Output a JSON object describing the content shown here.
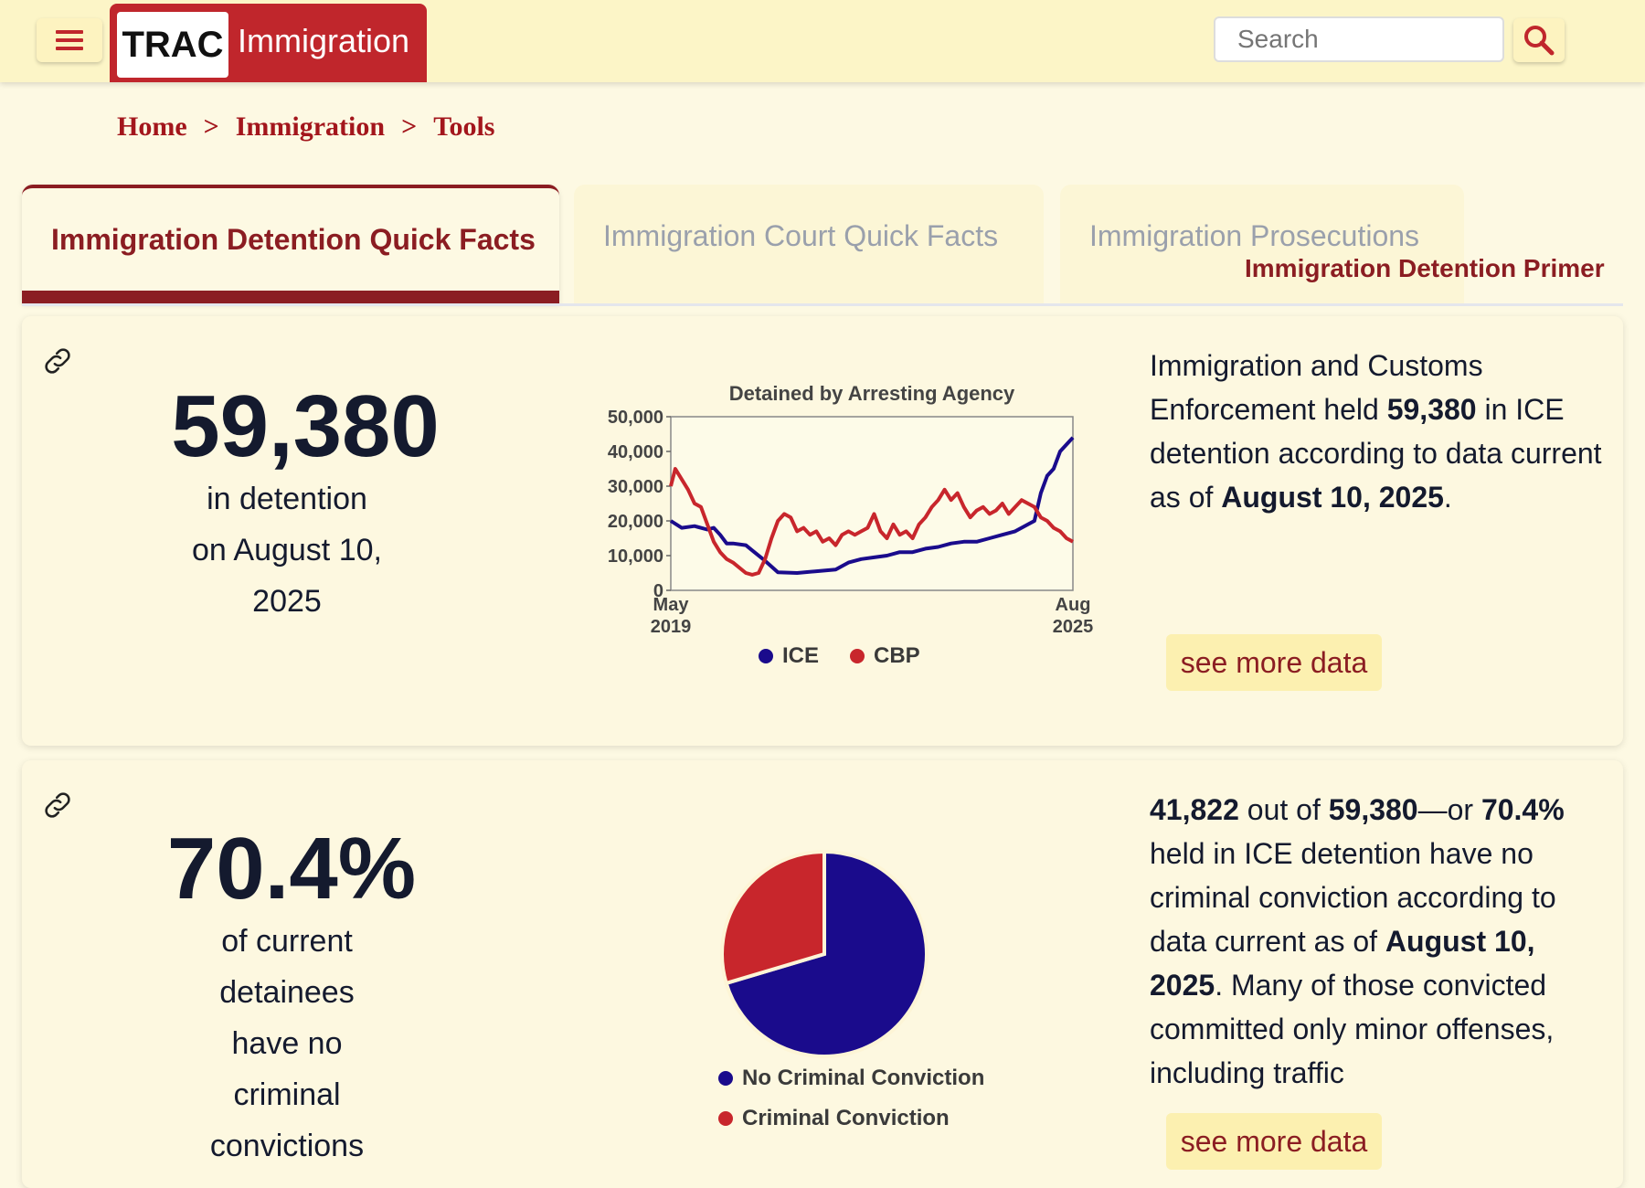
{
  "header": {
    "logo_trac": "TRAC",
    "logo_sub": "Immigration",
    "search_placeholder": "Search"
  },
  "breadcrumb": [
    "Home",
    "Immigration",
    "Tools"
  ],
  "breadcrumb_sep": ">",
  "tabs": [
    {
      "label": "Immigration Detention Quick Facts",
      "active": true
    },
    {
      "label": "Immigration Court Quick Facts",
      "active": false
    },
    {
      "label": "Immigration Prosecutions",
      "active": false
    }
  ],
  "tab_extra_link": "Immigration Detention Primer",
  "cards": [
    {
      "stat": "59,380",
      "stat_sub": [
        "in detention",
        "on August 10,",
        "2025"
      ],
      "desc_parts": [
        "Immigration and Customs Enforcement held ",
        "59,380",
        " in ICE detention according to data current as of ",
        "August 10, 2025",
        "."
      ],
      "button": "see more data"
    },
    {
      "stat": "70.4%",
      "stat_sub": [
        "of current",
        "detainees",
        "have no",
        "criminal",
        "convictions"
      ],
      "desc_parts": [
        "41,822",
        " out of ",
        "59,380",
        "—or ",
        "70.4%",
        " held in ICE detention have no criminal conviction according to data current as of ",
        "August 10, 2025",
        ". Many of those convicted committed only minor offenses, including traffic"
      ],
      "button": "see more data"
    }
  ],
  "colors": {
    "ice": "#1a0b8c",
    "cbp": "#c8262c",
    "brand": "#c0262c",
    "dark_red": "#8b1d22"
  },
  "chart_data": [
    {
      "type": "line",
      "title": "Detained by Arresting Agency",
      "x_labels": [
        "May 2019",
        "Aug 2025"
      ],
      "yticks": [
        0,
        10000,
        20000,
        30000,
        40000,
        50000
      ],
      "ytick_labels": [
        "0",
        "10,000",
        "20,000",
        "30,000",
        "40,000",
        "50,000"
      ],
      "ylim": [
        0,
        50000
      ],
      "x_range": [
        2019.33,
        2025.6
      ],
      "series": [
        {
          "name": "ICE",
          "color": "#1a0b8c",
          "x": [
            2019.33,
            2019.5,
            2019.7,
            2019.9,
            2020.0,
            2020.1,
            2020.2,
            2020.3,
            2020.5,
            2020.6,
            2020.8,
            2021.0,
            2021.3,
            2021.6,
            2021.9,
            2022.1,
            2022.3,
            2022.5,
            2022.7,
            2022.9,
            2023.1,
            2023.3,
            2023.5,
            2023.7,
            2023.9,
            2024.1,
            2024.3,
            2024.5,
            2024.7,
            2024.9,
            2025.0,
            2025.1,
            2025.2,
            2025.3,
            2025.4,
            2025.5,
            2025.6
          ],
          "y": [
            20000,
            18000,
            18500,
            17500,
            18000,
            16000,
            13500,
            13500,
            13000,
            11500,
            8500,
            5200,
            5000,
            5500,
            6000,
            8000,
            9000,
            9500,
            10000,
            11000,
            11000,
            12000,
            12500,
            13500,
            14000,
            14000,
            15000,
            16000,
            17000,
            19000,
            20000,
            28000,
            33000,
            35000,
            40000,
            42000,
            44000
          ]
        },
        {
          "name": "CBP",
          "color": "#c8262c",
          "x": [
            2019.33,
            2019.4,
            2019.5,
            2019.6,
            2019.7,
            2019.8,
            2019.9,
            2020.0,
            2020.1,
            2020.2,
            2020.3,
            2020.5,
            2020.6,
            2020.7,
            2020.8,
            2020.9,
            2021.0,
            2021.1,
            2021.2,
            2021.3,
            2021.4,
            2021.5,
            2021.6,
            2021.7,
            2021.8,
            2021.9,
            2022.0,
            2022.1,
            2022.2,
            2022.3,
            2022.4,
            2022.5,
            2022.6,
            2022.7,
            2022.8,
            2022.9,
            2023.0,
            2023.1,
            2023.2,
            2023.3,
            2023.4,
            2023.5,
            2023.6,
            2023.7,
            2023.8,
            2023.9,
            2024.0,
            2024.1,
            2024.2,
            2024.3,
            2024.4,
            2024.5,
            2024.6,
            2024.7,
            2024.8,
            2024.9,
            2025.0,
            2025.1,
            2025.2,
            2025.3,
            2025.4,
            2025.5,
            2025.6
          ],
          "y": [
            30000,
            35000,
            32000,
            29000,
            25000,
            24000,
            19000,
            14000,
            11000,
            9000,
            8000,
            5000,
            4500,
            5000,
            9000,
            15000,
            20000,
            22000,
            21000,
            17000,
            18000,
            16000,
            17000,
            14000,
            15000,
            13000,
            16000,
            17000,
            16000,
            17000,
            18000,
            22000,
            17000,
            15000,
            19000,
            16000,
            17000,
            15000,
            19000,
            21000,
            24000,
            26000,
            29000,
            26000,
            28000,
            24000,
            21000,
            23000,
            24000,
            22000,
            23000,
            25000,
            22000,
            24000,
            26000,
            25000,
            24000,
            21000,
            20000,
            18000,
            17000,
            15000,
            14000
          ]
        }
      ],
      "legend": [
        "ICE",
        "CBP"
      ]
    },
    {
      "type": "pie",
      "slices": [
        {
          "label": "No Criminal Conviction",
          "value": 70.4,
          "color": "#1a0b8c"
        },
        {
          "label": "Criminal Conviction",
          "value": 29.6,
          "color": "#c8262c"
        }
      ]
    }
  ]
}
